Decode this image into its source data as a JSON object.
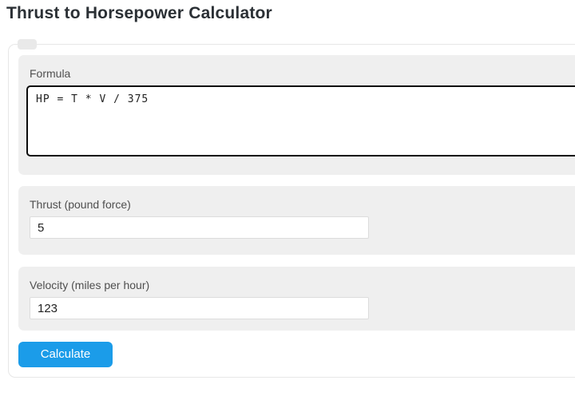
{
  "header": {
    "title": "Thrust to Horsepower Calculator"
  },
  "calculator": {
    "formula": {
      "label": "Formula",
      "value": "HP = T * V / 375"
    },
    "thrust": {
      "label": "Thrust (pound force)",
      "value": "5"
    },
    "velocity": {
      "label": "Velocity (miles per hour)",
      "value": "123"
    },
    "actions": {
      "calculate_label": "Calculate"
    }
  },
  "colors": {
    "accent_blue": "#1b9ce9",
    "section_bg": "#efefef",
    "textarea_border": "#0c0c0c"
  }
}
